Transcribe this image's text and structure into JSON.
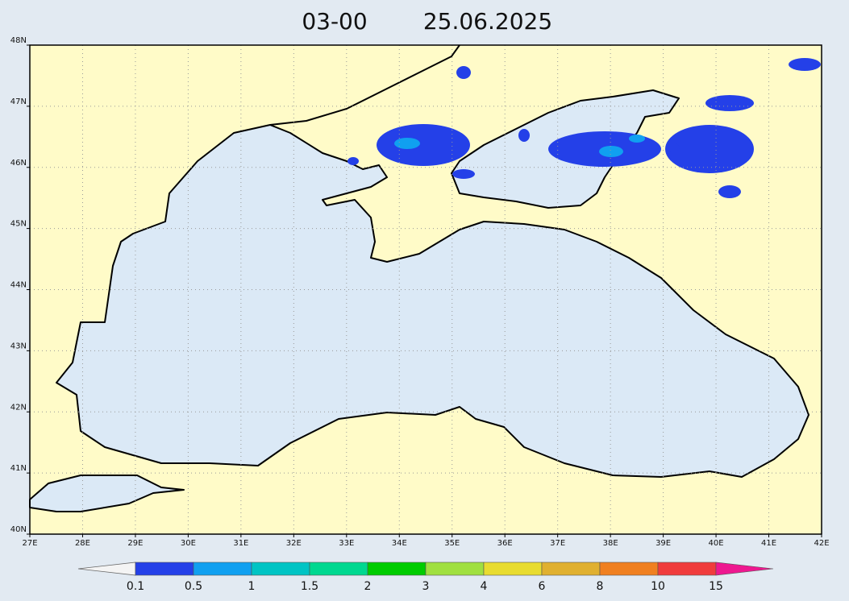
{
  "map": {
    "title": "03-00",
    "date": "25.06.2025",
    "xlim": [
      27,
      42
    ],
    "ylim": [
      40,
      48
    ],
    "xticks": [
      {
        "value": 27,
        "label": "27E"
      },
      {
        "value": 28,
        "label": "28E"
      },
      {
        "value": 29,
        "label": "29E"
      },
      {
        "value": 30,
        "label": "30E"
      },
      {
        "value": 31,
        "label": "31E"
      },
      {
        "value": 32,
        "label": "32E"
      },
      {
        "value": 33,
        "label": "33E"
      },
      {
        "value": 34,
        "label": "34E"
      },
      {
        "value": 35,
        "label": "35E"
      },
      {
        "value": 36,
        "label": "36E"
      },
      {
        "value": 37,
        "label": "37E"
      },
      {
        "value": 38,
        "label": "38E"
      },
      {
        "value": 39,
        "label": "39E"
      },
      {
        "value": 40,
        "label": "40E"
      },
      {
        "value": 41,
        "label": "41E"
      },
      {
        "value": 42,
        "label": "42E"
      }
    ],
    "yticks": [
      {
        "value": 40,
        "label": "40N"
      },
      {
        "value": 41,
        "label": "41N"
      },
      {
        "value": 42,
        "label": "42N"
      },
      {
        "value": 43,
        "label": "43N"
      },
      {
        "value": 44,
        "label": "44N"
      },
      {
        "value": 45,
        "label": "45N"
      },
      {
        "value": 46,
        "label": "46N"
      },
      {
        "value": 47,
        "label": "47N"
      },
      {
        "value": 48,
        "label": "48N"
      }
    ],
    "grid": true,
    "colorbar": {
      "levels": [
        0.1,
        0.5,
        1,
        1.5,
        2,
        3,
        4,
        6,
        8,
        10,
        15
      ],
      "colors": [
        "#f4f4f4",
        "#2440e8",
        "#10a0f0",
        "#00c4c4",
        "#00d890",
        "#00cc00",
        "#a0e040",
        "#e8dc30",
        "#e0b030",
        "#f08020",
        "#f03c3c",
        "#ee1890"
      ]
    }
  }
}
